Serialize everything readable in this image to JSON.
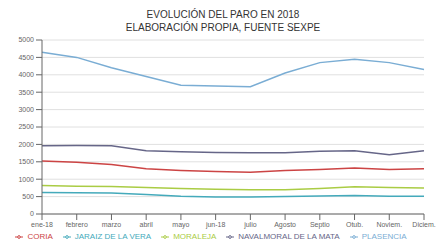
{
  "chart_data": {
    "type": "line",
    "title": "EVOLUCIÓN DEL PARO EN 2018",
    "subtitle": "ELABORACIÓN PROPIA, FUENTE SEXPE",
    "categories": [
      "ene-18",
      "febrero",
      "marzo",
      "abril",
      "mayo",
      "jun-18",
      "julio",
      "Agosto",
      "Septio",
      "Otub.",
      "Noviem.",
      "Diciem."
    ],
    "series": [
      {
        "name": "PLASENCIA",
        "color": "#7aadd4",
        "values": [
          4650,
          4500,
          4200,
          3950,
          3700,
          3680,
          3660,
          4050,
          4350,
          4450,
          4350,
          4150
        ]
      },
      {
        "name": "CORIA",
        "color": "#cc4444",
        "values": [
          1520,
          1490,
          1420,
          1300,
          1250,
          1220,
          1200,
          1250,
          1280,
          1320,
          1280,
          1300
        ]
      },
      {
        "name": "MORALEJA",
        "color": "#aacc44",
        "values": [
          820,
          800,
          790,
          760,
          730,
          710,
          700,
          700,
          730,
          780,
          760,
          750
        ]
      },
      {
        "name": "NAVALMORAL DE LA MATA",
        "color": "#666688",
        "values": [
          1960,
          1970,
          1960,
          1820,
          1790,
          1770,
          1760,
          1760,
          1800,
          1820,
          1700,
          1820
        ]
      },
      {
        "name": "JARAIZ DE LA VERA",
        "color": "#44aabb",
        "values": [
          620,
          610,
          600,
          560,
          510,
          490,
          490,
          500,
          520,
          530,
          510,
          510
        ]
      }
    ],
    "ylim": [
      0,
      5000
    ],
    "yticks": [
      0,
      500,
      1000,
      1500,
      2000,
      2500,
      3000,
      3500,
      4000,
      4500,
      5000
    ],
    "grid": "y",
    "legend": "bottom"
  }
}
